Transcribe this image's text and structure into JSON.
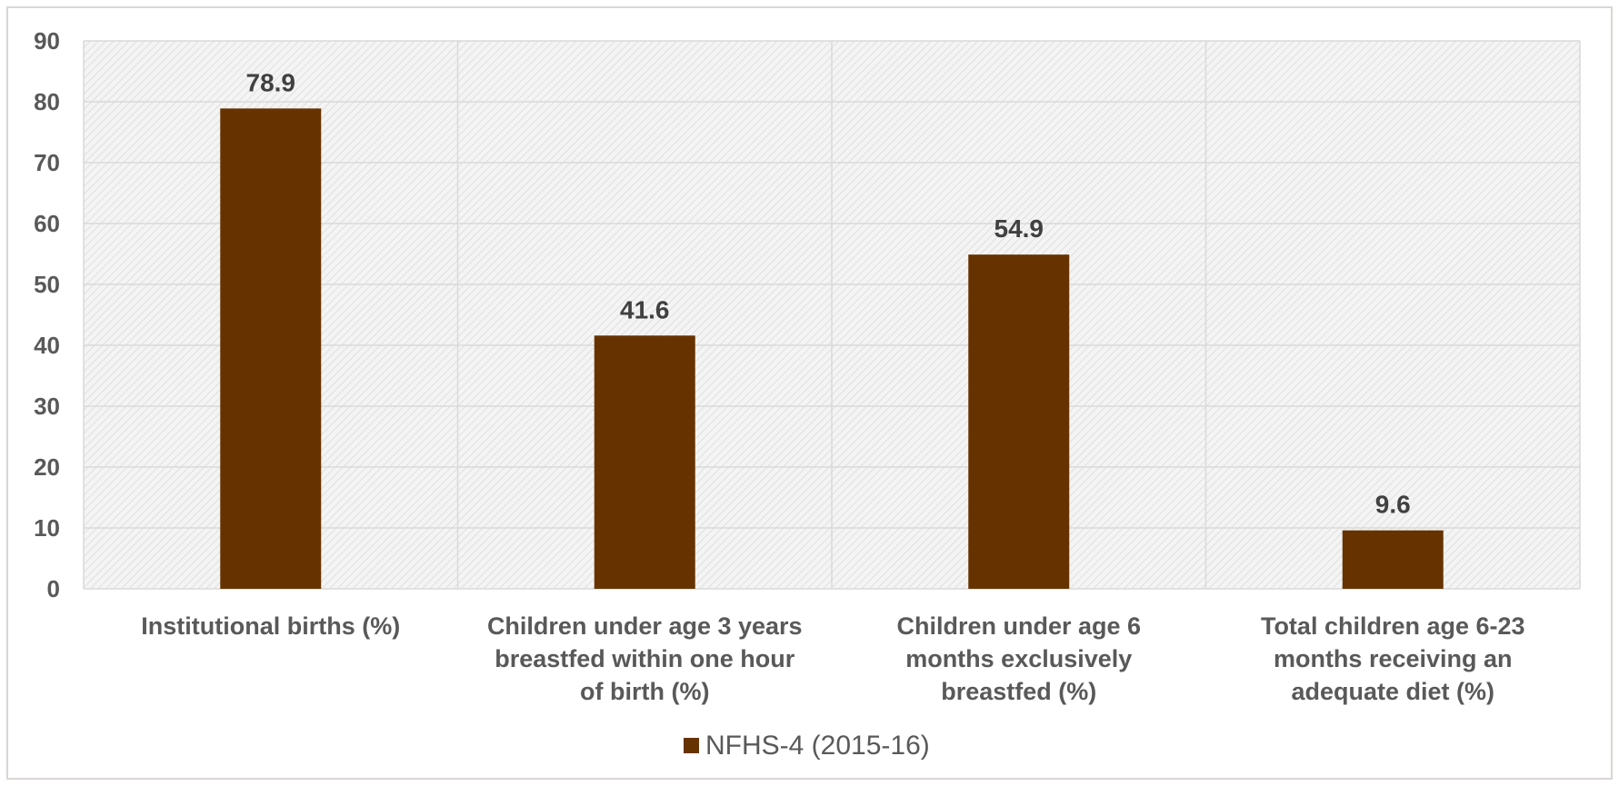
{
  "chart_data": {
    "type": "bar",
    "categories": [
      [
        "Institutional births (%)"
      ],
      [
        "Children under age 3 years",
        "breastfed within one hour",
        "of birth (%)"
      ],
      [
        "Children under age 6",
        "months exclusively",
        "breastfed (%)"
      ],
      [
        "Total children age 6-23",
        "months receiving an",
        "adequate diet (%)"
      ]
    ],
    "series": [
      {
        "name": "NFHS-4 (2015-16)",
        "values": [
          78.9,
          41.6,
          54.9,
          9.6
        ],
        "color": "#663300"
      }
    ],
    "data_labels": [
      "78.9",
      "41.6",
      "54.9",
      "9.6"
    ],
    "ylim": [
      0,
      90
    ],
    "yticks": [
      0,
      10,
      20,
      30,
      40,
      50,
      60,
      70,
      80,
      90
    ],
    "grid": true,
    "plot_background": "hatched light grey",
    "legend_position": "bottom",
    "colors": {
      "bar": "#663300",
      "grid": "#d9d9d9",
      "axis_text": "#595959",
      "label_text": "#404040"
    }
  }
}
